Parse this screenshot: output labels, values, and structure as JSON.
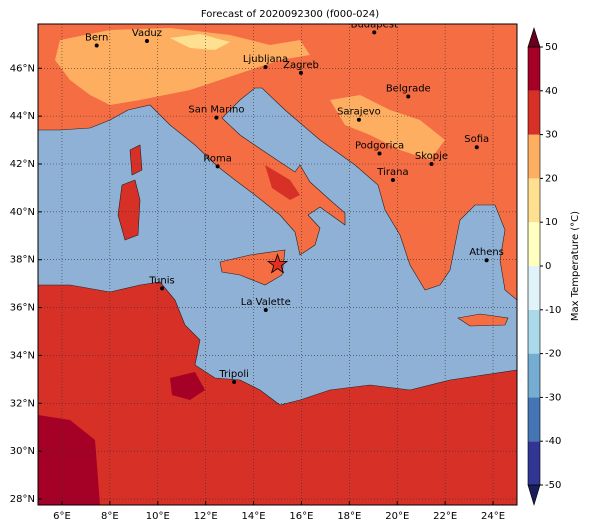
{
  "title": "Forecast of 2020092300 (f000-024)",
  "map": {
    "xlim": [
      5,
      25
    ],
    "ylim": [
      27.75,
      47.85
    ],
    "lon_ticks": [
      {
        "value": 6,
        "label": "6°E"
      },
      {
        "value": 8,
        "label": "8°E"
      },
      {
        "value": 10,
        "label": "10°E"
      },
      {
        "value": 12,
        "label": "12°E"
      },
      {
        "value": 14,
        "label": "14°E"
      },
      {
        "value": 16,
        "label": "16°E"
      },
      {
        "value": 18,
        "label": "18°E"
      },
      {
        "value": 20,
        "label": "20°E"
      },
      {
        "value": 22,
        "label": "22°E"
      },
      {
        "value": 24,
        "label": "24°E"
      }
    ],
    "lat_ticks": [
      {
        "value": 28,
        "label": "28°N"
      },
      {
        "value": 30,
        "label": "30°N"
      },
      {
        "value": 32,
        "label": "32°N"
      },
      {
        "value": 34,
        "label": "34°N"
      },
      {
        "value": 36,
        "label": "36°N"
      },
      {
        "value": 38,
        "label": "38°N"
      },
      {
        "value": 40,
        "label": "40°N"
      },
      {
        "value": 42,
        "label": "42°N"
      },
      {
        "value": 44,
        "label": "44°N"
      },
      {
        "value": 46,
        "label": "46°N"
      }
    ],
    "cities": [
      {
        "label": "Bern",
        "lon": 7.45,
        "lat": 46.95
      },
      {
        "label": "Vaduz",
        "lon": 9.55,
        "lat": 47.14
      },
      {
        "label": "Budapest",
        "lon": 19.04,
        "lat": 47.5
      },
      {
        "label": "Ljubljana",
        "lon": 14.5,
        "lat": 46.05
      },
      {
        "label": "Zagreb",
        "lon": 15.98,
        "lat": 45.81
      },
      {
        "label": "Belgrade",
        "lon": 20.46,
        "lat": 44.82
      },
      {
        "label": "San Marino",
        "lon": 12.45,
        "lat": 43.94
      },
      {
        "label": "Sarajevo",
        "lon": 18.4,
        "lat": 43.85
      },
      {
        "label": "Sofia",
        "lon": 23.32,
        "lat": 42.7
      },
      {
        "label": "Podgorica",
        "lon": 19.26,
        "lat": 42.44
      },
      {
        "label": "Skopje",
        "lon": 21.43,
        "lat": 42.0
      },
      {
        "label": "Roma",
        "lon": 12.5,
        "lat": 41.9
      },
      {
        "label": "Tirana",
        "lon": 19.82,
        "lat": 41.33
      },
      {
        "label": "Athens",
        "lon": 23.73,
        "lat": 37.98
      },
      {
        "label": "Tunis",
        "lon": 10.18,
        "lat": 36.8
      },
      {
        "label": "La Valette",
        "lon": 14.51,
        "lat": 35.9
      },
      {
        "label": "Tripoli",
        "lon": 13.19,
        "lat": 32.89
      }
    ],
    "star": {
      "lon": 15.0,
      "lat": 37.8
    }
  },
  "colorbar": {
    "label": "Max Temperature (°C)",
    "lim": [
      -50,
      50
    ],
    "ticks": [
      -50,
      -40,
      -30,
      -20,
      -10,
      0,
      10,
      20,
      30,
      40,
      50
    ],
    "colors": [
      "#313695",
      "#4575b4",
      "#74add1",
      "#abd9e9",
      "#e0f3f8",
      "#ffffbf",
      "#fee090",
      "#fdae61",
      "#d73027",
      "#a50026"
    ],
    "under_color": "#1a1d5c",
    "over_color": "#67001f"
  }
}
